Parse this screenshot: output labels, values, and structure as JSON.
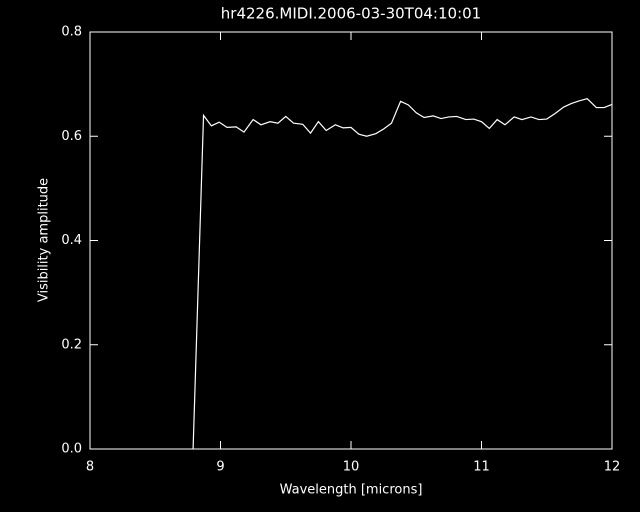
{
  "chart_data": {
    "type": "line",
    "title": "hr4226.MIDI.2006-03-30T04:10:01",
    "xlabel": "Wavelength [microns]",
    "ylabel": "Visibility amplitude",
    "x": [
      8.79,
      8.87,
      8.93,
      8.99,
      9.05,
      9.12,
      9.18,
      9.25,
      9.31,
      9.38,
      9.44,
      9.5,
      9.56,
      9.63,
      9.69,
      9.75,
      9.81,
      9.88,
      9.94,
      10.0,
      10.06,
      10.12,
      10.19,
      10.25,
      10.31,
      10.38,
      10.44,
      10.5,
      10.56,
      10.63,
      10.69,
      10.75,
      10.81,
      10.88,
      10.94,
      11.0,
      11.06,
      11.12,
      11.18,
      11.25,
      11.31,
      11.38,
      11.44,
      11.5,
      11.56,
      11.63,
      11.69,
      11.75,
      11.81,
      11.88,
      11.94,
      12.0
    ],
    "values": [
      0,
      0.64,
      0.62,
      0.627,
      0.617,
      0.618,
      0.608,
      0.632,
      0.622,
      0.628,
      0.625,
      0.638,
      0.625,
      0.623,
      0.606,
      0.628,
      0.611,
      0.622,
      0.616,
      0.617,
      0.604,
      0.6,
      0.605,
      0.614,
      0.625,
      0.667,
      0.66,
      0.645,
      0.636,
      0.639,
      0.634,
      0.637,
      0.638,
      0.632,
      0.633,
      0.628,
      0.615,
      0.632,
      0.622,
      0.637,
      0.632,
      0.637,
      0.632,
      0.633,
      0.643,
      0.656,
      0.663,
      0.668,
      0.672,
      0.655,
      0.655,
      0.661
    ],
    "color": "#ffffff",
    "xlim": [
      8,
      12
    ],
    "xticks": [
      8,
      9,
      10,
      11,
      12
    ],
    "ylim": [
      0,
      0.8
    ],
    "yticks": [
      {
        "value": 0,
        "label": "0.0"
      },
      0.2,
      0.4,
      0.6,
      0.8
    ]
  }
}
